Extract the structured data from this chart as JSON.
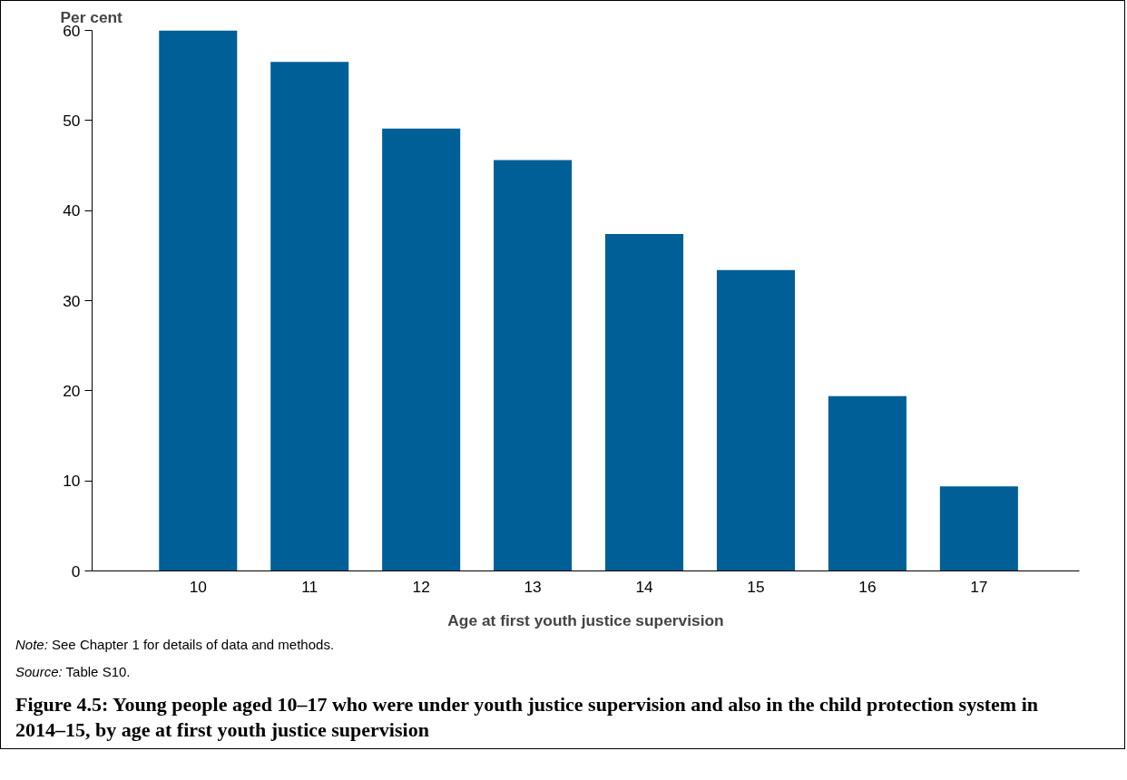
{
  "chart_data": {
    "type": "bar",
    "title": "Figure 4.5: Young people aged 10–17 who were under youth justice supervision and also in the child protection system in 2014–15, by age at first youth justice supervision",
    "ylabel": "Per cent",
    "xlabel": "Age at first youth justice supervision",
    "categories": [
      "10",
      "11",
      "12",
      "13",
      "14",
      "15",
      "16",
      "17"
    ],
    "values": [
      60.0,
      56.5,
      49.1,
      45.6,
      37.4,
      33.4,
      19.4,
      9.4
    ],
    "color": "#005f96",
    "ylim": [
      0,
      60
    ],
    "yticks": [
      0,
      10,
      20,
      30,
      40,
      50,
      60
    ],
    "grid": false,
    "annotations": [
      "Note: See Chapter 1 for details of data and methods.",
      "Source: Table S10."
    ]
  }
}
